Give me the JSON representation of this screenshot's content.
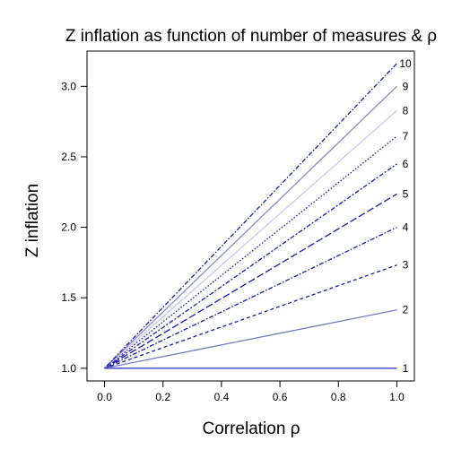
{
  "chart_data": {
    "type": "line",
    "title": "Z inflation as function of number of measures & ρ",
    "xlabel": "Correlation ρ",
    "ylabel": "Z inflation",
    "xlim": [
      -0.06,
      1.06
    ],
    "ylim": [
      0.91,
      3.25
    ],
    "xticks": [
      "0.0",
      "0.2",
      "0.4",
      "0.6",
      "0.8",
      "1.0"
    ],
    "xtick_values": [
      0,
      0.2,
      0.4,
      0.6,
      0.8,
      1.0
    ],
    "yticks": [
      "1.0",
      "1.5",
      "2.0",
      "2.5",
      "3.0"
    ],
    "ytick_values": [
      1.0,
      1.5,
      2.0,
      2.5,
      3.0
    ],
    "grid": false,
    "legend": "direct labels at right end of lines",
    "series": [
      {
        "name": "1",
        "x": [
          0,
          1
        ],
        "y": [
          1.0,
          1.0
        ],
        "color": "#2222cc",
        "dash": "solid"
      },
      {
        "name": "2",
        "x": [
          0,
          1
        ],
        "y": [
          1.0,
          1.414
        ],
        "color": "#7777cc",
        "dash": "solid"
      },
      {
        "name": "3",
        "x": [
          0,
          1
        ],
        "y": [
          1.0,
          1.732
        ],
        "color": "#1a1aaa",
        "dash": "dashed"
      },
      {
        "name": "4",
        "x": [
          0,
          1
        ],
        "y": [
          1.0,
          2.0
        ],
        "color": "#1a1aaa",
        "dash": "dotdash"
      },
      {
        "name": "5",
        "x": [
          0,
          1
        ],
        "y": [
          1.0,
          2.236
        ],
        "color": "#1a1aaa",
        "dash": "longdash"
      },
      {
        "name": "6",
        "x": [
          0,
          1
        ],
        "y": [
          1.0,
          2.449
        ],
        "color": "#1a1aaa",
        "dash": "twodash"
      },
      {
        "name": "7",
        "x": [
          0,
          1
        ],
        "y": [
          1.0,
          2.646
        ],
        "color": "#1a1aaa",
        "dash": "dotted"
      },
      {
        "name": "8",
        "x": [
          0,
          1
        ],
        "y": [
          1.0,
          2.828
        ],
        "color": "#c8c8ee",
        "dash": "solid"
      },
      {
        "name": "9",
        "x": [
          0,
          1
        ],
        "y": [
          1.0,
          3.0
        ],
        "color": "#8888cc",
        "dash": "solid"
      },
      {
        "name": "10",
        "x": [
          0,
          1
        ],
        "y": [
          1.0,
          3.162
        ],
        "color": "#1a1aaa",
        "dash": "dotdash"
      }
    ]
  }
}
